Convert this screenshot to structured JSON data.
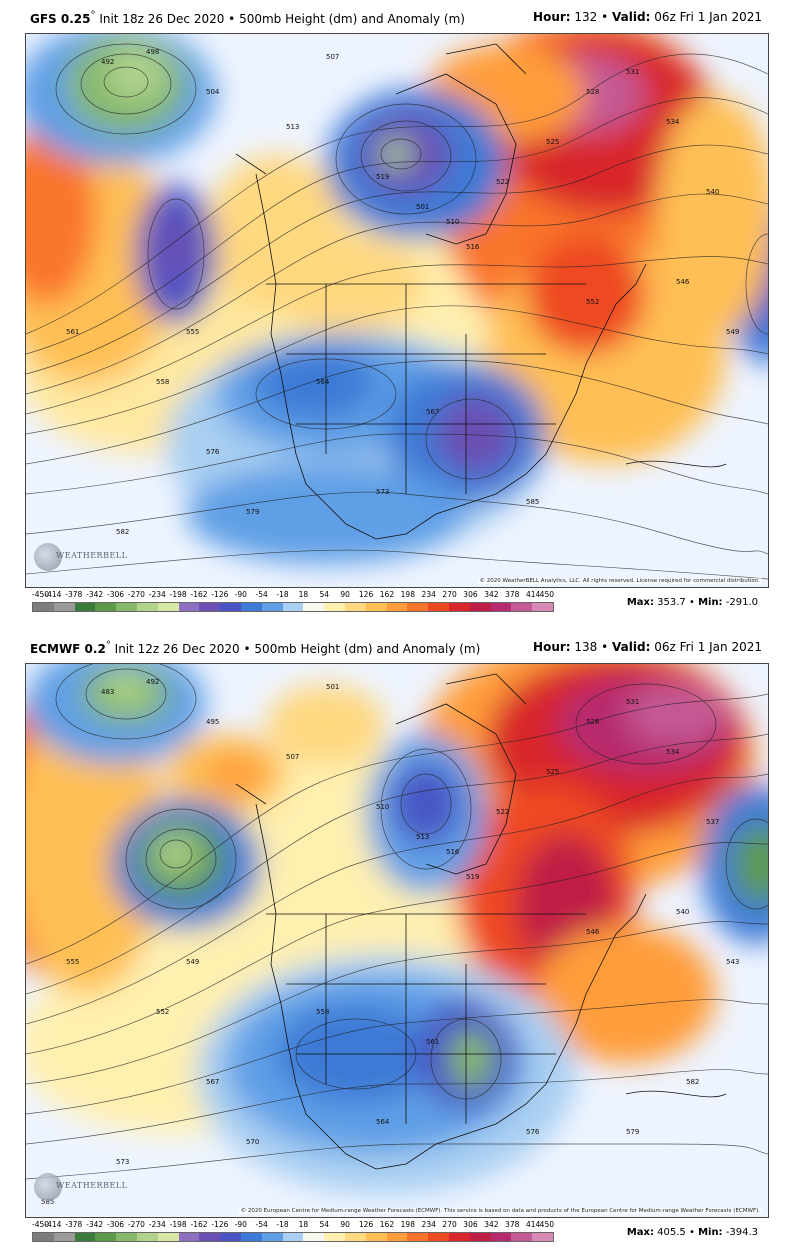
{
  "panels": [
    {
      "model": "GFS 0.25",
      "init": "Init 18z 26 Dec 2020",
      "field": "500mb Height (dm) and Anomaly (m)",
      "hour_label": "Hour:",
      "hour": "132",
      "valid_label": "Valid:",
      "valid": "06z Fri 1 Jan 2021",
      "credit": "© 2020 WeatherBELL Analytics, LLC. All rights reserved. License required for commercial distribution.",
      "max_label": "Max:",
      "max": "353.7",
      "min_label": "Min:",
      "min": "-291.0",
      "contour_labels": [
        "492",
        "498",
        "504",
        "507",
        "513",
        "519",
        "501",
        "510",
        "516",
        "522",
        "525",
        "528",
        "531",
        "534",
        "540",
        "546",
        "549",
        "552",
        "555",
        "558",
        "561",
        "564",
        "567",
        "573",
        "576",
        "579",
        "582",
        "585"
      ]
    },
    {
      "model": "ECMWF 0.2",
      "init": "Init 12z 26 Dec 2020",
      "field": "500mb Height (dm) and Anomaly (m)",
      "hour_label": "Hour:",
      "hour": "138",
      "valid_label": "Valid:",
      "valid": "06z Fri 1 Jan 2021",
      "credit": "© 2020 European Centre for Medium-range Weather Forecasts (ECMWF). This service is based on data and products of the European Centre for Medium-range Weather Forecasts (ECMWF).",
      "max_label": "Max:",
      "max": "405.5",
      "min_label": "Min:",
      "min": "-394.3",
      "contour_labels": [
        "483",
        "492",
        "495",
        "501",
        "507",
        "510",
        "513",
        "516",
        "519",
        "522",
        "525",
        "528",
        "531",
        "534",
        "537",
        "540",
        "543",
        "546",
        "549",
        "552",
        "555",
        "558",
        "561",
        "564",
        "567",
        "570",
        "573",
        "576",
        "579",
        "582",
        "585"
      ]
    }
  ],
  "logo_text": "WEATHERBELL",
  "colorbar": {
    "ticks": [
      "-450",
      "-414",
      "-378",
      "-342",
      "-306",
      "-270",
      "-234",
      "-198",
      "-162",
      "-126",
      "-90",
      "-54",
      "-18",
      "18",
      "54",
      "90",
      "126",
      "162",
      "198",
      "234",
      "270",
      "306",
      "342",
      "378",
      "414",
      "450"
    ],
    "colors": [
      "#7d7d7d",
      "#9a9a9a",
      "#3a7a3a",
      "#5d9a4c",
      "#86b86a",
      "#b1d38e",
      "#d7e8a4",
      "#8f6fbf",
      "#6b4fb3",
      "#4a54c4",
      "#3e7ad6",
      "#5e9fe6",
      "#a9cff2",
      "#f7f7ee",
      "#fff0b0",
      "#ffd880",
      "#ffbf55",
      "#ff9d3a",
      "#f9742c",
      "#ee4a22",
      "#d8262a",
      "#c01f45",
      "#b62a6e",
      "#c45a95",
      "#d78ab6"
    ]
  }
}
